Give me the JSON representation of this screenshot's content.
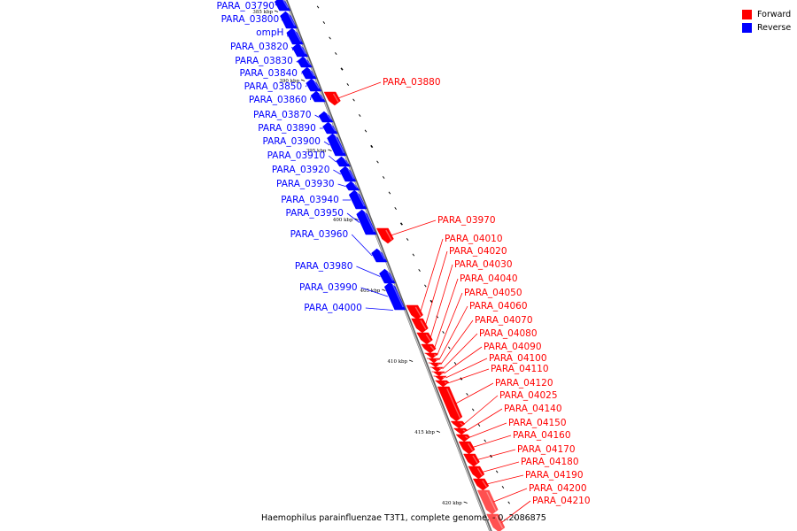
{
  "caption": "Haemophilus parainfluenzae T3T1, complete genome. - 0..2086875",
  "legend": [
    {
      "label": "Forward",
      "color": "#ff0000"
    },
    {
      "label": "Reverse",
      "color": "#0000ff"
    }
  ],
  "colors": {
    "forward": "#ff0000",
    "reverse": "#0000ff",
    "backbone": "#808080"
  },
  "ticks": [
    {
      "label": "385 kbp",
      "kbp": 385
    },
    {
      "label": "390 kbp",
      "kbp": 390
    },
    {
      "label": "395 kbp",
      "kbp": 395
    },
    {
      "label": "400 kbp",
      "kbp": 400
    },
    {
      "label": "405 kbp",
      "kbp": 405
    },
    {
      "label": "410 kbp",
      "kbp": 410
    },
    {
      "label": "415 kbp",
      "kbp": 415
    },
    {
      "label": "420 kbp",
      "kbp": 420
    }
  ],
  "reverse_genes": [
    "PARA_03790",
    "PARA_03800",
    "ompH",
    "PARA_03820",
    "PARA_03830",
    "PARA_03840",
    "PARA_03850",
    "PARA_03860",
    "PARA_03870",
    "PARA_03890",
    "PARA_03900",
    "PARA_03910",
    "PARA_03920",
    "PARA_03930",
    "PARA_03940",
    "PARA_03950",
    "PARA_03960",
    "PARA_03980",
    "PARA_03990",
    "PARA_04000"
  ],
  "forward_genes": [
    "PARA_03880",
    "PARA_03970",
    "PARA_04010",
    "PARA_04020",
    "PARA_04030",
    "PARA_04040",
    "PARA_04050",
    "PARA_04060",
    "PARA_04070",
    "PARA_04080",
    "PARA_04090",
    "PARA_04100",
    "PARA_04110",
    "PARA_04120",
    "PARA_04025",
    "PARA_04140",
    "PARA_04150",
    "PARA_04160",
    "PARA_04170",
    "PARA_04180",
    "PARA_04190",
    "PARA_04200",
    "PARA_04210"
  ]
}
